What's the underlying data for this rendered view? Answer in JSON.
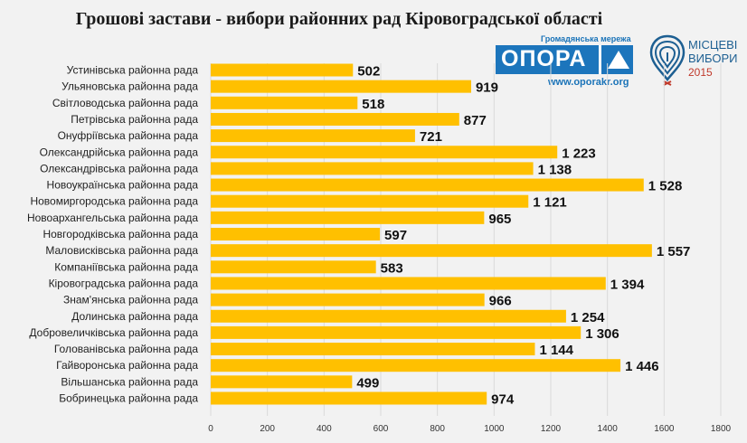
{
  "chart_data": {
    "type": "bar",
    "orientation": "horizontal",
    "title": "Грошові застави - вибори районних рад Кіровоградської області",
    "categories": [
      "Устинівська районна рада",
      "Ульяновська районна рада",
      "Світловодська районна рада",
      "Петрівська районна рада",
      "Онуфріївська районна рада",
      "Олександрійська районна рада",
      "Олександрівська районна рада",
      "Новоукраїнська районна рада",
      "Новомиргородська районна рада",
      "Новоархангельська районна рада",
      "Новгородківська районна рада",
      "Маловисківська районна рада",
      "Компаніївська районна рада",
      "Кіровоградська районна рада",
      "Знам'янська районна рада",
      "Долинська районна рада",
      "Добровеличківська районна рада",
      "Голованівська районна рада",
      "Гайворонська районна рада",
      "Вільшанська районна рада",
      "Бобринецька районна рада"
    ],
    "values": [
      502,
      919,
      518,
      877,
      721,
      1223,
      1138,
      1528,
      1121,
      965,
      597,
      1557,
      583,
      1394,
      966,
      1254,
      1306,
      1144,
      1446,
      499,
      974
    ],
    "value_labels": [
      "502",
      "919",
      "518",
      "877",
      "721",
      "1 223",
      "1 138",
      "1 528",
      "1 121",
      "965",
      "597",
      "1 557",
      "583",
      "1 394",
      "966",
      "1 254",
      "1 306",
      "1 144",
      "1 446",
      "499",
      "974"
    ],
    "xlim": [
      0,
      1800
    ],
    "x_ticks": [
      "0",
      "200",
      "400",
      "600",
      "800",
      "1000",
      "1200",
      "1400",
      "1600",
      "1800"
    ],
    "grid": true,
    "bar_color": "#ffc000",
    "grid_color": "#d9d9d9"
  },
  "logos": {
    "opora": {
      "tagline": "Громадянська мережа",
      "word": "ОПОРА",
      "url": "www.oporakr.org",
      "color": "#1c75bc"
    },
    "vybory": {
      "line1": "МІСЦЕВІ",
      "line2": "ВИБОРИ",
      "line3": "2015",
      "icon": "location-pin-fingerprint-icon"
    }
  }
}
